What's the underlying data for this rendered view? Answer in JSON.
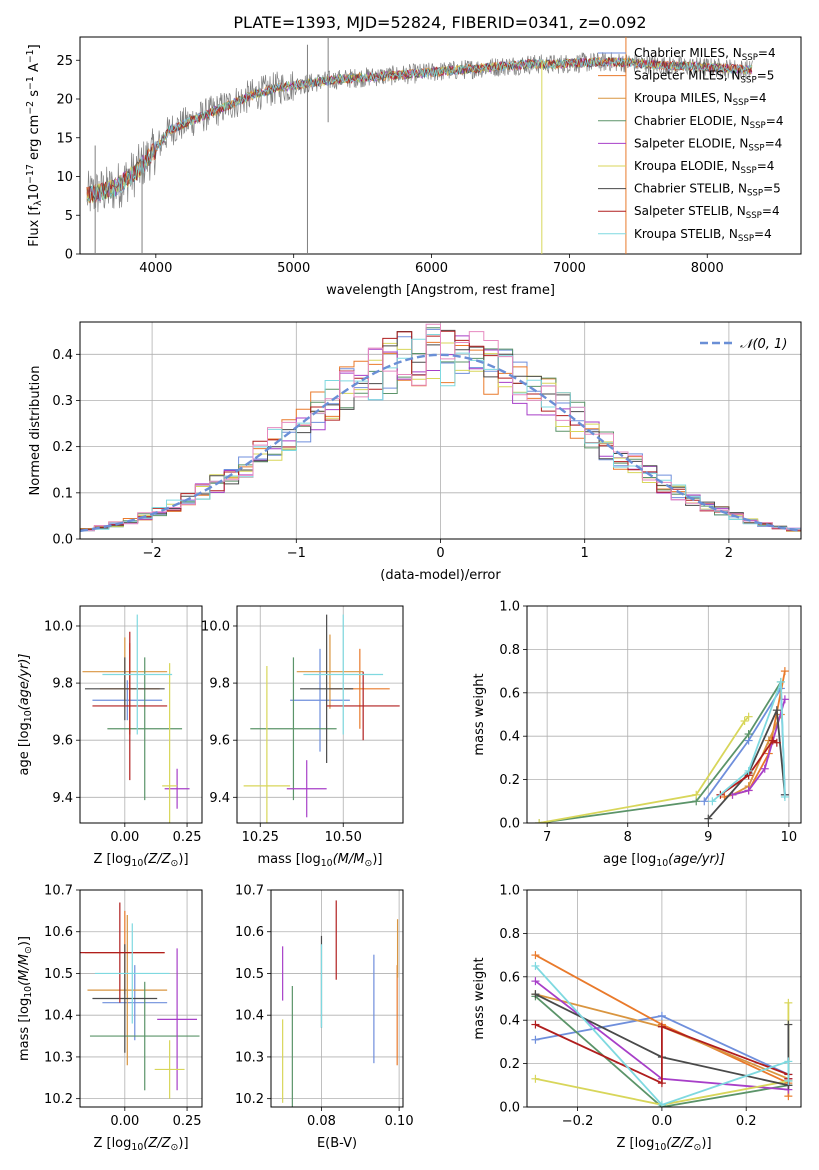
{
  "figure": {
    "title": "PLATE=1393, MJD=52824, FIBERID=0341, z=0.092"
  },
  "model_names": [
    "Chabrier MILES",
    "Salpeter MILES",
    "Kroupa MILES",
    "Chabrier ELODIE",
    "Salpeter ELODIE",
    "Kroupa ELODIE",
    "Chabrier STELIB",
    "Salpeter STELIB",
    "Kroupa STELIB"
  ],
  "model_colors": [
    "#6f8fdc",
    "#e97a2b",
    "#d99540",
    "#5b9469",
    "#a73fc8",
    "#d8d65a",
    "#4a4a4a",
    "#b01e1e",
    "#7fd9e0"
  ],
  "nssp_values": [
    4,
    5,
    4,
    4,
    4,
    4,
    5,
    4,
    4
  ],
  "chart_data": [
    {
      "type": "line",
      "title": "PLATE=1393, MJD=52824, FIBERID=0341, z=0.092",
      "xlabel": "wavelength [Angstrom, rest frame]",
      "ylabel_main": "Flux [f",
      "ylabel_sub": "λ",
      "ylabel_rest": "10",
      "ylabel_exp1": "−17",
      "ylabel_units": " erg cm",
      "ylabel_exp2": "−2",
      "ylabel_s": " s",
      "ylabel_exp3": "−1",
      "ylabel_A": " A",
      "ylabel_exp4": "−1",
      "ylabel_close": "]",
      "xlim": [
        3450,
        8680
      ],
      "ylim": [
        0,
        28
      ],
      "xticks": [
        "4000",
        "5000",
        "6000",
        "7000",
        "8000"
      ],
      "yticks": [
        "0",
        "5",
        "10",
        "15",
        "20",
        "25"
      ],
      "data_color": "#808080",
      "continuum": {
        "x": [
          3500,
          3700,
          3850,
          4000,
          4100,
          4300,
          4500,
          4700,
          4900,
          5100,
          5300,
          5500,
          5700,
          5900,
          6100,
          6300,
          6500,
          6700,
          6900,
          7100,
          7300,
          7500,
          7700,
          7900,
          8100,
          8300
        ],
        "y": [
          7.5,
          8.5,
          10.5,
          13.5,
          16,
          17.5,
          19,
          20.5,
          21.5,
          22,
          22.5,
          22.8,
          23,
          23.3,
          23.6,
          23.9,
          24.2,
          24.5,
          24.5,
          24.7,
          24.8,
          24.6,
          24.3,
          24.2,
          24,
          23.8
        ]
      },
      "legend_entries": [
        {
          "name": "Chabrier MILES, N",
          "sub": "SSP",
          "val": "=4"
        },
        {
          "name": "Salpeter MILES, N",
          "sub": "SSP",
          "val": "=5"
        },
        {
          "name": "Kroupa MILES, N",
          "sub": "SSP",
          "val": "=4"
        },
        {
          "name": "Chabrier ELODIE, N",
          "sub": "SSP",
          "val": "=4"
        },
        {
          "name": "Salpeter ELODIE, N",
          "sub": "SSP",
          "val": "=4"
        },
        {
          "name": "Kroupa ELODIE, N",
          "sub": "SSP",
          "val": "=4"
        },
        {
          "name": "Chabrier STELIB, N",
          "sub": "SSP",
          "val": "=5"
        },
        {
          "name": "Salpeter STELIB, N",
          "sub": "SSP",
          "val": "=4"
        },
        {
          "name": "Kroupa STELIB, N",
          "sub": "SSP",
          "val": "=4"
        }
      ]
    },
    {
      "type": "histogram",
      "xlabel": "(data-model)/error",
      "ylabel": "Normed distribution",
      "xlim": [
        -2.5,
        2.5
      ],
      "ylim": [
        0,
        0.47
      ],
      "xticks": [
        "−2",
        "−1",
        "0",
        "1",
        "2"
      ],
      "yticks": [
        "0.0",
        "0.1",
        "0.2",
        "0.3",
        "0.4"
      ],
      "legend": "𝒩(0, 1)",
      "bin_width": 0.1,
      "bins_start": -2.5,
      "base_distribution": "normal(0,1)"
    },
    {
      "type": "errorbar",
      "xlabel": "Z [log",
      "xlabel_sub": "10",
      "xlabel_rest": "(Z/Z",
      "xlabel_sun": "⊙",
      "xlabel_close": ")]",
      "ylabel": "age  [log",
      "ylabel_sub": "10",
      "ylabel_rest": "(age/yr)]",
      "xlim": [
        -0.18,
        0.31
      ],
      "ylim": [
        9.31,
        10.07
      ],
      "xticks": [
        {
          "v": 0.0,
          "t": "0.00"
        },
        {
          "v": 0.25,
          "t": "0.25"
        }
      ],
      "yticks": [
        {
          "v": 9.4,
          "t": "9.4"
        },
        {
          "v": 9.6,
          "t": "9.6"
        },
        {
          "v": 9.8,
          "t": "9.8"
        },
        {
          "v": 10.0,
          "t": "10.0"
        }
      ],
      "points": [
        {
          "x": 0.01,
          "xerr": 0.14,
          "y": 9.74,
          "yerr": 0.07
        },
        {
          "x": 0.02,
          "xerr": 0.12,
          "y": 9.78,
          "yerr": 0.16
        },
        {
          "x": 0.0,
          "xerr": 0.17,
          "y": 9.84,
          "yerr": 0.12
        },
        {
          "x": 0.08,
          "xerr": 0.15,
          "y": 9.64,
          "yerr": 0.25
        },
        {
          "x": 0.21,
          "xerr": 0.05,
          "y": 9.43,
          "yerr": 0.07
        },
        {
          "x": 0.18,
          "xerr": 0.03,
          "y": 9.44,
          "yerr": 0.43
        },
        {
          "x": 0.0,
          "xerr": 0.16,
          "y": 9.78,
          "yerr": 0.11
        },
        {
          "x": 0.02,
          "xerr": 0.15,
          "y": 9.72,
          "yerr": 0.26
        },
        {
          "x": 0.05,
          "xerr": 0.14,
          "y": 9.83,
          "yerr": 0.21
        }
      ]
    },
    {
      "type": "errorbar",
      "xlabel": "mass [log",
      "xlabel_sub": "10",
      "xlabel_rest": "(M/M",
      "xlabel_sun": "⊙",
      "xlabel_close": ")]",
      "ylabel": "",
      "xlim": [
        10.18,
        10.68
      ],
      "ylim": [
        9.31,
        10.07
      ],
      "xticks": [
        {
          "v": 10.25,
          "t": "10.25"
        },
        {
          "v": 10.5,
          "t": "10.50"
        }
      ],
      "yticks": [
        {
          "v": 9.4,
          "t": "9.4"
        },
        {
          "v": 9.6,
          "t": "9.6"
        },
        {
          "v": 9.8,
          "t": "9.8"
        },
        {
          "v": 10.0,
          "t": "10.0"
        }
      ],
      "points": [
        {
          "x": 10.43,
          "xerr": 0.09,
          "y": 9.74,
          "yerr": 0.18
        },
        {
          "x": 10.55,
          "xerr": 0.09,
          "y": 9.78,
          "yerr": 0.14
        },
        {
          "x": 10.46,
          "xerr": 0.1,
          "y": 9.84,
          "yerr": 0.13
        },
        {
          "x": 10.35,
          "xerr": 0.13,
          "y": 9.64,
          "yerr": 0.25
        },
        {
          "x": 10.39,
          "xerr": 0.06,
          "y": 9.43,
          "yerr": 0.1
        },
        {
          "x": 10.27,
          "xerr": 0.07,
          "y": 9.44,
          "yerr": 0.42
        },
        {
          "x": 10.45,
          "xerr": 0.08,
          "y": 9.78,
          "yerr": 0.26
        },
        {
          "x": 10.56,
          "xerr": 0.11,
          "y": 9.72,
          "yerr": 0.12
        },
        {
          "x": 10.5,
          "xerr": 0.12,
          "y": 9.83,
          "yerr": 0.21
        }
      ]
    },
    {
      "type": "line",
      "xlabel": "age  [log",
      "xlabel_sub": "10",
      "xlabel_rest": "(age/yr)]",
      "ylabel": "mass weight",
      "xlim": [
        6.75,
        10.15
      ],
      "ylim": [
        0,
        1
      ],
      "xticks": [
        {
          "v": 7,
          "t": "7"
        },
        {
          "v": 8,
          "t": "8"
        },
        {
          "v": 9,
          "t": "9"
        },
        {
          "v": 10,
          "t": "10"
        }
      ],
      "yticks": [
        {
          "v": 0,
          "t": "0.0"
        },
        {
          "v": 0.2,
          "t": "0.2"
        },
        {
          "v": 0.4,
          "t": "0.4"
        },
        {
          "v": 0.6,
          "t": "0.6"
        },
        {
          "v": 0.8,
          "t": "0.8"
        },
        {
          "v": 1.0,
          "t": "1.0"
        }
      ],
      "series": [
        {
          "x": [
            8.95,
            9.5,
            9.9,
            9.95
          ],
          "y": [
            0.1,
            0.38,
            0.62,
            0.13
          ]
        },
        {
          "x": [
            9.2,
            9.5,
            9.75,
            9.95
          ],
          "y": [
            0.12,
            0.15,
            0.32,
            0.7
          ]
        },
        {
          "x": [
            9.3,
            9.5,
            9.75,
            9.9
          ],
          "y": [
            0.13,
            0.17,
            0.38,
            0.5
          ]
        },
        {
          "x": [
            6.9,
            8.85,
            9.5,
            9.9
          ],
          "y": [
            0.0,
            0.1,
            0.41,
            0.65
          ]
        },
        {
          "x": [
            9.3,
            9.5,
            9.7,
            9.95
          ],
          "y": [
            0.13,
            0.15,
            0.25,
            0.57
          ]
        },
        {
          "x": [
            6.9,
            8.85,
            9.45,
            9.5
          ],
          "y": [
            0.0,
            0.13,
            0.47,
            0.49
          ]
        },
        {
          "x": [
            9.0,
            9.5,
            9.85,
            9.95
          ],
          "y": [
            0.02,
            0.23,
            0.52,
            0.13
          ]
        },
        {
          "x": [
            9.15,
            9.5,
            9.8,
            9.85
          ],
          "y": [
            0.13,
            0.22,
            0.38,
            0.37
          ]
        },
        {
          "x": [
            9.05,
            9.5,
            9.9,
            9.95
          ],
          "y": [
            0.1,
            0.24,
            0.65,
            0.12
          ]
        }
      ]
    },
    {
      "type": "errorbar",
      "xlabel": "Z [log",
      "xlabel_sub": "10",
      "xlabel_rest": "(Z/Z",
      "xlabel_sun": "⊙",
      "xlabel_close": ")]",
      "ylabel": "mass [log",
      "ylabel_sub": "10",
      "ylabel_rest": "(M/M",
      "ylabel_sun": "⊙",
      "ylabel_close": ")]",
      "xlim": [
        -0.18,
        0.31
      ],
      "ylim": [
        10.18,
        10.7
      ],
      "xticks": [
        {
          "v": 0.0,
          "t": "0.00"
        },
        {
          "v": 0.25,
          "t": "0.25"
        }
      ],
      "yticks": [
        {
          "v": 10.2,
          "t": "10.2"
        },
        {
          "v": 10.3,
          "t": "10.3"
        },
        {
          "v": 10.4,
          "t": "10.4"
        },
        {
          "v": 10.5,
          "t": "10.5"
        },
        {
          "v": 10.6,
          "t": "10.6"
        },
        {
          "v": 10.7,
          "t": "10.7"
        }
      ],
      "points": [
        {
          "x": 0.04,
          "xerr": 0.13,
          "y": 10.43,
          "yerr": 0.09
        },
        {
          "x": 0.0,
          "xerr": 0.16,
          "y": 10.55,
          "yerr": 0.1
        },
        {
          "x": 0.01,
          "xerr": 0.16,
          "y": 10.46,
          "yerr": 0.18
        },
        {
          "x": 0.08,
          "xerr": 0.22,
          "y": 10.35,
          "yerr": 0.13
        },
        {
          "x": 0.21,
          "xerr": 0.08,
          "y": 10.39,
          "yerr": 0.17
        },
        {
          "x": 0.18,
          "xerr": 0.06,
          "y": 10.27,
          "yerr": 0.07
        },
        {
          "x": 0.0,
          "xerr": 0.13,
          "y": 10.44,
          "yerr": 0.13
        },
        {
          "x": -0.02,
          "xerr": 0.18,
          "y": 10.55,
          "yerr": 0.12
        },
        {
          "x": 0.03,
          "xerr": 0.15,
          "y": 10.5,
          "yerr": 0.12
        }
      ]
    },
    {
      "type": "errorbar",
      "xlabel": "E(B-V)",
      "ylabel": "",
      "xlim": [
        0.067,
        0.101
      ],
      "ylim": [
        10.18,
        10.7
      ],
      "xticks": [
        {
          "v": 0.08,
          "t": "0.08"
        },
        {
          "v": 0.1,
          "t": "0.10"
        }
      ],
      "yticks": [
        {
          "v": 10.2,
          "t": "10.2"
        },
        {
          "v": 10.3,
          "t": "10.3"
        },
        {
          "v": 10.4,
          "t": "10.4"
        },
        {
          "v": 10.5,
          "t": "10.5"
        },
        {
          "v": 10.6,
          "t": "10.6"
        },
        {
          "v": 10.7,
          "t": "10.7"
        }
      ],
      "points": [
        {
          "x": 0.0935,
          "xerr": 0,
          "y": 10.415,
          "yerr": 0.13
        },
        {
          "x": 0.0995,
          "xerr": 0,
          "y": 10.4,
          "yerr": 0.12
        },
        {
          "x": 0.0996,
          "xerr": 0,
          "y": 10.56,
          "yerr": 0.07
        },
        {
          "x": 0.0725,
          "xerr": 0,
          "y": 10.3,
          "yerr": 0.17
        },
        {
          "x": 0.07,
          "xerr": 0,
          "y": 10.5,
          "yerr": 0.065
        },
        {
          "x": 0.07,
          "xerr": 0,
          "y": 10.29,
          "yerr": 0.1
        },
        {
          "x": 0.08,
          "xerr": 0,
          "y": 10.48,
          "yerr": 0.11
        },
        {
          "x": 0.0838,
          "xerr": 0,
          "y": 10.58,
          "yerr": 0.095
        },
        {
          "x": 0.08,
          "xerr": 0,
          "y": 10.47,
          "yerr": 0.1
        }
      ]
    },
    {
      "type": "line",
      "xlabel": "Z [log",
      "xlabel_sub": "10",
      "xlabel_rest": "(Z/Z",
      "xlabel_sun": "⊙",
      "xlabel_close": ")]",
      "ylabel": "mass weight",
      "xlim": [
        -0.32,
        0.33
      ],
      "ylim": [
        0,
        1
      ],
      "xticks": [
        {
          "v": -0.2,
          "t": "−0.2"
        },
        {
          "v": 0.0,
          "t": "0.0"
        },
        {
          "v": 0.2,
          "t": "0.2"
        }
      ],
      "yticks": [
        {
          "v": 0,
          "t": "0.0"
        },
        {
          "v": 0.2,
          "t": "0.2"
        },
        {
          "v": 0.4,
          "t": "0.4"
        },
        {
          "v": 0.6,
          "t": "0.6"
        },
        {
          "v": 0.8,
          "t": "0.8"
        },
        {
          "v": 1.0,
          "t": "1.0"
        }
      ],
      "series": [
        {
          "x": [
            -0.3,
            0.0,
            0.3,
            0.3
          ],
          "y": [
            0.31,
            0.42,
            0.15,
            0.12
          ]
        },
        {
          "x": [
            -0.3,
            0.0,
            0.3,
            0.3
          ],
          "y": [
            0.7,
            0.38,
            0.11,
            0.05
          ]
        },
        {
          "x": [
            -0.3,
            0.0,
            0.3,
            0.3
          ],
          "y": [
            0.52,
            0.37,
            0.13,
            0.1
          ]
        },
        {
          "x": [
            -0.3,
            0.0,
            0.3,
            0.3
          ],
          "y": [
            0.51,
            0.0,
            0.1,
            0.12
          ]
        },
        {
          "x": [
            -0.3,
            0.0,
            0.3,
            0.3
          ],
          "y": [
            0.58,
            0.13,
            0.08,
            0.13
          ]
        },
        {
          "x": [
            -0.3,
            0.0,
            0.3,
            0.3
          ],
          "y": [
            0.13,
            0.01,
            0.12,
            0.48
          ]
        },
        {
          "x": [
            -0.3,
            0.0,
            0.3,
            0.3
          ],
          "y": [
            0.52,
            0.23,
            0.1,
            0.38
          ]
        },
        {
          "x": [
            -0.3,
            0.0,
            0.0,
            0.3,
            0.3
          ],
          "y": [
            0.38,
            0.11,
            0.37,
            0.15,
            0.13
          ]
        },
        {
          "x": [
            -0.3,
            0.0,
            0.3,
            0.3
          ],
          "y": [
            0.65,
            0.01,
            0.21,
            0.12
          ]
        }
      ]
    }
  ]
}
